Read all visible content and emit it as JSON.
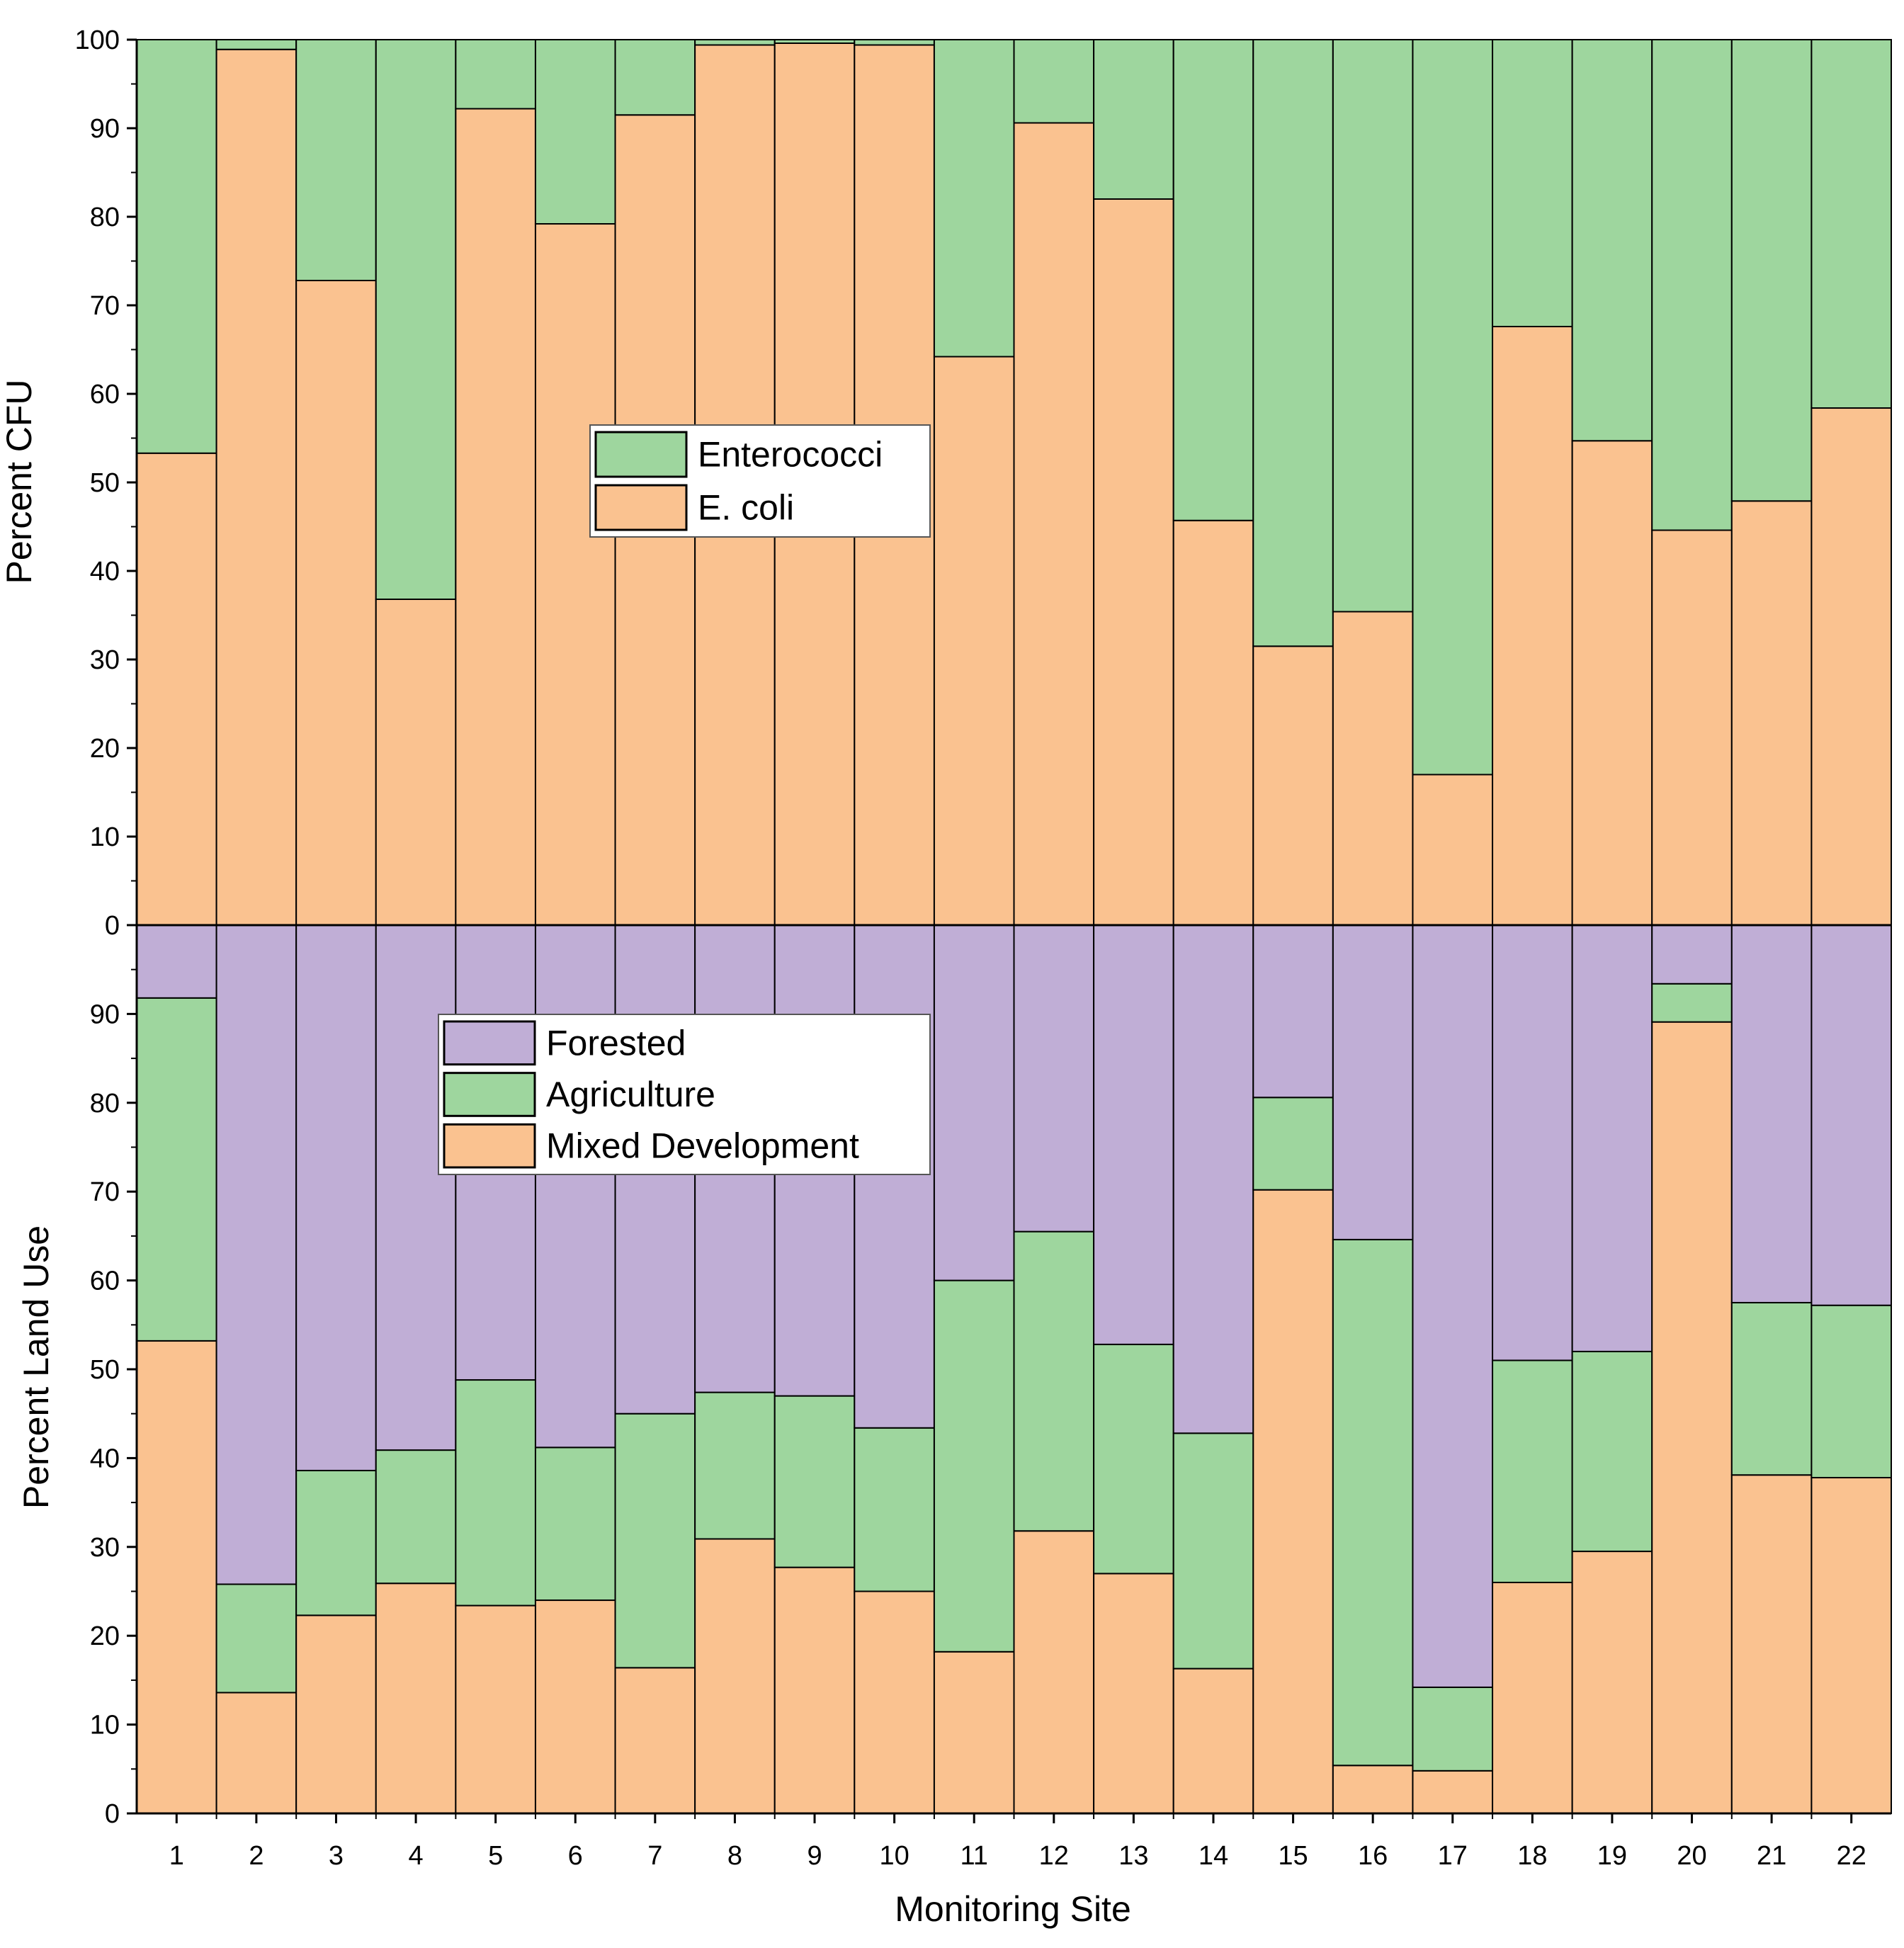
{
  "colors": {
    "ecoli": "#fac290",
    "enterococci": "#9ed69e",
    "forested": "#c0aed6",
    "agriculture": "#9ed69e",
    "mixed_development": "#fac290",
    "edge": "#000000"
  },
  "chart_data": [
    {
      "type": "bar",
      "stacked": true,
      "panel": "top",
      "ylabel": "Percent CFU",
      "ylim": [
        0,
        100
      ],
      "yticks": [
        "0",
        "10",
        "20",
        "30",
        "40",
        "50",
        "60",
        "70",
        "80",
        "90",
        "100"
      ],
      "categories": [
        "1",
        "2",
        "3",
        "4",
        "5",
        "6",
        "7",
        "8",
        "9",
        "10",
        "11",
        "12",
        "13",
        "14",
        "15",
        "16",
        "17",
        "18",
        "19",
        "20",
        "21",
        "22"
      ],
      "legend_position": "center-left",
      "series": [
        {
          "name": "E. coli",
          "color": "#fac290",
          "values": [
            53.3,
            98.9,
            72.8,
            36.8,
            92.2,
            79.2,
            91.5,
            99.4,
            99.6,
            99.4,
            64.2,
            90.6,
            82,
            45.7,
            31.5,
            35.4,
            17,
            67.6,
            54.7,
            44.6,
            47.9,
            58.4
          ]
        },
        {
          "name": "Enterococci",
          "color": "#9ed69e",
          "values": [
            46.7,
            1.1,
            27.2,
            63.2,
            7.8,
            20.8,
            8.5,
            0.6,
            0.4,
            0.6,
            35.8,
            9.4,
            18,
            54.3,
            68.5,
            64.6,
            83,
            32.4,
            45.3,
            55.4,
            52.1,
            41.6
          ]
        }
      ]
    },
    {
      "type": "bar",
      "stacked": true,
      "panel": "bottom",
      "ylabel": "Percent Land Use",
      "xlabel": "Monitoring Site",
      "ylim": [
        0,
        100
      ],
      "yticks": [
        "0",
        "10",
        "20",
        "30",
        "40",
        "50",
        "60",
        "70",
        "80",
        "90"
      ],
      "categories": [
        "1",
        "2",
        "3",
        "4",
        "5",
        "6",
        "7",
        "8",
        "9",
        "10",
        "11",
        "12",
        "13",
        "14",
        "15",
        "16",
        "17",
        "18",
        "19",
        "20",
        "21",
        "22"
      ],
      "legend_position": "upper-left",
      "series": [
        {
          "name": "Mixed Development",
          "color": "#fac290",
          "values": [
            53.2,
            13.6,
            22.3,
            25.9,
            23.4,
            24,
            16.4,
            30.9,
            27.7,
            25,
            18.2,
            31.8,
            27,
            16.3,
            70.2,
            5.4,
            4.8,
            26,
            29.5,
            89.1,
            38.1,
            37.8
          ]
        },
        {
          "name": "Agriculture",
          "color": "#9ed69e",
          "values": [
            38.6,
            12.2,
            16.3,
            15,
            25.4,
            17.2,
            28.6,
            16.5,
            19.3,
            18.4,
            41.8,
            33.7,
            25.8,
            26.5,
            10.4,
            59.2,
            9.4,
            25,
            22.5,
            4.3,
            19.4,
            19.4
          ]
        },
        {
          "name": "Forested",
          "color": "#c0aed6",
          "values": [
            8.2,
            74.2,
            61.4,
            59.1,
            51.2,
            58.8,
            55,
            52.6,
            53,
            56.6,
            40,
            34.5,
            47.2,
            57.2,
            19.4,
            35.4,
            85.8,
            49,
            48,
            6.6,
            42.5,
            42.8
          ]
        }
      ]
    }
  ]
}
